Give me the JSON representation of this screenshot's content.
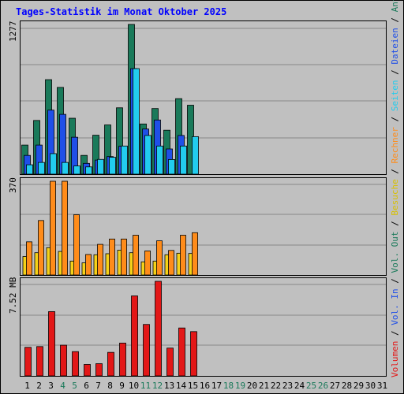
{
  "title": "Tages-Statistik im Monat Oktober 2025",
  "colors": {
    "background": "#c0c0c0",
    "anfragen": "#1a7a5a",
    "dateien": "#1f4fe8",
    "seiten": "#22ccee",
    "besuche": "#f5d21a",
    "rechner": "#ff8c1a",
    "volumen": "#e31717",
    "title": "#0000ff",
    "weekend_day": "#1a7a5a"
  },
  "legend": [
    {
      "text": "Volumen",
      "color": "#e31717"
    },
    {
      "text": " / ",
      "color": "#000000"
    },
    {
      "text": "Vol. In",
      "color": "#1f4fe8"
    },
    {
      "text": " / ",
      "color": "#000000"
    },
    {
      "text": "Vol. Out",
      "color": "#1a7a5a"
    },
    {
      "text": " / ",
      "color": "#000000"
    },
    {
      "text": "Besuche",
      "color": "#d8c000"
    },
    {
      "text": " / ",
      "color": "#000000"
    },
    {
      "text": "Rechner",
      "color": "#ff8c1a"
    },
    {
      "text": " / ",
      "color": "#000000"
    },
    {
      "text": "Seiten",
      "color": "#22ccee"
    },
    {
      "text": " / ",
      "color": "#000000"
    },
    {
      "text": "Dateien",
      "color": "#1f4fe8"
    },
    {
      "text": " / ",
      "color": "#000000"
    },
    {
      "text": "Anfragen",
      "color": "#1a7a5a"
    }
  ],
  "chart_data": [
    {
      "type": "bar",
      "panel": "hits",
      "ymax_label": "1277",
      "ymax": 1277,
      "categories": [
        "1",
        "2",
        "3",
        "4",
        "5",
        "6",
        "7",
        "8",
        "9",
        "10",
        "11",
        "12",
        "13",
        "14",
        "15",
        "16",
        "17",
        "18",
        "19",
        "20",
        "21",
        "22",
        "23",
        "24",
        "25",
        "26",
        "27",
        "28",
        "29",
        "30",
        "31"
      ],
      "series": [
        {
          "name": "Anfragen",
          "color": "#1a7a5a",
          "values": [
            248,
            458,
            806,
            740,
            477,
            160,
            332,
            420,
            566,
            1277,
            428,
            560,
            375,
            644,
            588,
            0,
            0,
            0,
            0,
            0,
            0,
            0,
            0,
            0,
            0,
            0,
            0,
            0,
            0,
            0,
            0
          ]
        },
        {
          "name": "Dateien",
          "color": "#1f4fe8",
          "values": [
            160,
            248,
            546,
            510,
            315,
            92,
            120,
            150,
            238,
            900,
            385,
            462,
            215,
            330,
            0,
            0,
            0,
            0,
            0,
            0,
            0,
            0,
            0,
            0,
            0,
            0,
            0,
            0,
            0,
            0,
            0
          ]
        },
        {
          "name": "Seiten",
          "color": "#22ccee",
          "values": [
            80,
            100,
            175,
            100,
            70,
            62,
            126,
            144,
            240,
            900,
            330,
            240,
            125,
            240,
            320,
            0,
            0,
            0,
            0,
            0,
            0,
            0,
            0,
            0,
            0,
            0,
            0,
            0,
            0,
            0,
            0
          ]
        }
      ]
    },
    {
      "type": "bar",
      "panel": "visits",
      "ymax_label": "370",
      "ymax": 370,
      "categories": [
        "1",
        "2",
        "3",
        "4",
        "5",
        "6",
        "7",
        "8",
        "9",
        "10",
        "11",
        "12",
        "13",
        "14",
        "15",
        "16",
        "17",
        "18",
        "19",
        "20",
        "21",
        "22",
        "23",
        "24",
        "25",
        "26",
        "27",
        "28",
        "29",
        "30",
        "31"
      ],
      "series": [
        {
          "name": "Besuche",
          "color": "#f5d21a",
          "values": [
            73,
            88,
            108,
            93,
            55,
            48,
            80,
            84,
            98,
            88,
            52,
            55,
            80,
            86,
            85,
            0,
            0,
            0,
            0,
            0,
            0,
            0,
            0,
            0,
            0,
            0,
            0,
            0,
            0,
            0,
            0
          ]
        },
        {
          "name": "Rechner",
          "color": "#ff8c1a",
          "values": [
            131,
            215,
            370,
            370,
            238,
            81,
            121,
            142,
            142,
            157,
            95,
            135,
            97,
            157,
            167,
            0,
            0,
            0,
            0,
            0,
            0,
            0,
            0,
            0,
            0,
            0,
            0,
            0,
            0,
            0,
            0
          ]
        }
      ]
    },
    {
      "type": "bar",
      "panel": "volume",
      "ymax_label": "7.52 MB",
      "ymax": 7.52,
      "unit": "MB",
      "categories": [
        "1",
        "2",
        "3",
        "4",
        "5",
        "6",
        "7",
        "8",
        "9",
        "10",
        "11",
        "12",
        "13",
        "14",
        "15",
        "16",
        "17",
        "18",
        "19",
        "20",
        "21",
        "22",
        "23",
        "24",
        "25",
        "26",
        "27",
        "28",
        "29",
        "30",
        "31"
      ],
      "series": [
        {
          "name": "Volumen",
          "color": "#e31717",
          "values": [
            2.27,
            2.33,
            5.11,
            2.44,
            1.93,
            0.91,
            0.97,
            1.87,
            2.61,
            6.36,
            4.09,
            7.52,
            2.21,
            3.81,
            3.52,
            0,
            0,
            0,
            0,
            0,
            0,
            0,
            0,
            0,
            0,
            0,
            0,
            0,
            0,
            0,
            0
          ]
        }
      ]
    }
  ],
  "x_labels": [
    {
      "text": "1",
      "weekend": false
    },
    {
      "text": "2",
      "weekend": false
    },
    {
      "text": "3",
      "weekend": false
    },
    {
      "text": "4",
      "weekend": true
    },
    {
      "text": "5",
      "weekend": true
    },
    {
      "text": "6",
      "weekend": false
    },
    {
      "text": "7",
      "weekend": false
    },
    {
      "text": "8",
      "weekend": false
    },
    {
      "text": "9",
      "weekend": false
    },
    {
      "text": "10",
      "weekend": false
    },
    {
      "text": "11",
      "weekend": true
    },
    {
      "text": "12",
      "weekend": true
    },
    {
      "text": "13",
      "weekend": false
    },
    {
      "text": "14",
      "weekend": false
    },
    {
      "text": "15",
      "weekend": false
    },
    {
      "text": "16",
      "weekend": false
    },
    {
      "text": "17",
      "weekend": false
    },
    {
      "text": "18",
      "weekend": true
    },
    {
      "text": "19",
      "weekend": true
    },
    {
      "text": "20",
      "weekend": false
    },
    {
      "text": "21",
      "weekend": false
    },
    {
      "text": "22",
      "weekend": false
    },
    {
      "text": "23",
      "weekend": false
    },
    {
      "text": "24",
      "weekend": false
    },
    {
      "text": "25",
      "weekend": true
    },
    {
      "text": "26",
      "weekend": true
    },
    {
      "text": "27",
      "weekend": false
    },
    {
      "text": "28",
      "weekend": false
    },
    {
      "text": "29",
      "weekend": false
    },
    {
      "text": "30",
      "weekend": false
    },
    {
      "text": "31",
      "weekend": false
    }
  ]
}
